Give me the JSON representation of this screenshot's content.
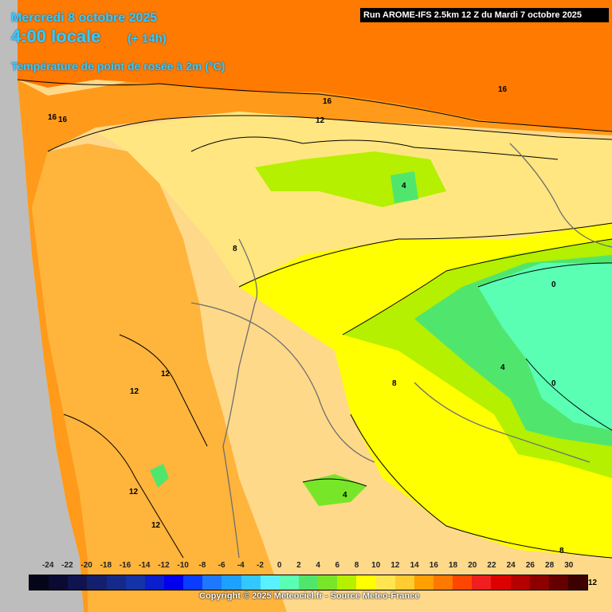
{
  "header": {
    "date": "Mercredi 8 octobre 2025",
    "time": "4:00 locale",
    "lead": "(+ 14h)",
    "parameter": "Température de point de rosée à 2m (°C)",
    "run": "Run AROME-IFS 2.5km 12 Z du Mardi 7 octobre 2025"
  },
  "contour_labels": [
    "16",
    "16",
    "16",
    "16",
    "12",
    "4",
    "8",
    "0",
    "0",
    "4",
    "8",
    "12",
    "12",
    "12",
    "12",
    "4",
    "8",
    "12"
  ],
  "legend": {
    "ticks": [
      "-24",
      "-22",
      "-20",
      "-18",
      "-16",
      "-14",
      "-12",
      "-10",
      "-8",
      "-6",
      "-4",
      "-2",
      "0",
      "2",
      "4",
      "6",
      "8",
      "10",
      "12",
      "14",
      "16",
      "18",
      "20",
      "22",
      "24",
      "26",
      "28",
      "30"
    ],
    "colors": [
      "#05051a",
      "#0a0a33",
      "#0f1450",
      "#14206e",
      "#142a8a",
      "#1433a8",
      "#0a1ecc",
      "#0000ee",
      "#0a3cff",
      "#1e78ff",
      "#1ea0ff",
      "#32c8ff",
      "#5af0ff",
      "#5affb4",
      "#50e66e",
      "#78e628",
      "#b4f000",
      "#ffff00",
      "#ffe650",
      "#ffcc32",
      "#ffa000",
      "#ff7800",
      "#ff4600",
      "#f01e1e",
      "#dc0000",
      "#b40000",
      "#8c0000",
      "#640000",
      "#3c0000"
    ]
  },
  "copyright": "Copyright © 2025 Meteociel.fr - Source Meteo-France"
}
